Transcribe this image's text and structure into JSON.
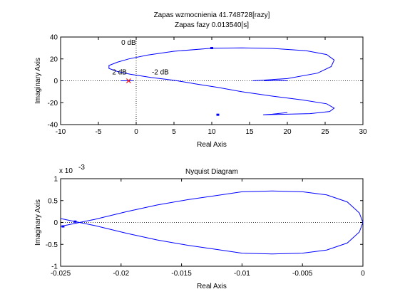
{
  "chart_data": [
    {
      "type": "line",
      "title": [
        "Zapas wzmocnienia 41.748728[razy]",
        "Zapas fazy 0.013540[s]"
      ],
      "xlabel": "Real Axis",
      "ylabel": "Imaginary Axis",
      "xlim": [
        -10,
        30
      ],
      "ylim": [
        -40,
        40
      ],
      "xticks": [
        -10,
        -5,
        0,
        5,
        10,
        15,
        20,
        25,
        30
      ],
      "yticks": [
        -40,
        -20,
        0,
        20,
        40
      ],
      "xtick_labels": [
        "-10",
        "-5",
        "0",
        "5",
        "10",
        "15",
        "20",
        "25",
        "30"
      ],
      "ytick_labels": [
        "-40",
        "-20",
        "0",
        "20",
        "40"
      ],
      "grid": false,
      "critical_point": [
        -1,
        0
      ],
      "annotations": [
        {
          "text": "0 dB",
          "x": -1,
          "y": 33
        },
        {
          "text": "2 dB",
          "x": -2.2,
          "y": 6
        },
        {
          "text": "-2 dB",
          "x": 3.2,
          "y": 6
        }
      ],
      "series": [
        {
          "color": "#0000ff",
          "x": [
            15.4,
            20,
            24,
            25.8,
            26.2,
            25.2,
            22.5,
            18,
            14,
            10,
            5,
            1.5,
            -1,
            -2.5,
            -3.6,
            -3.6,
            -2.5,
            -0.8,
            2,
            5,
            8,
            10.8,
            14,
            18,
            22,
            25.2,
            26.2,
            25.6,
            23,
            18,
            16.8,
            18,
            20
          ],
          "y": [
            0,
            2,
            7,
            13,
            19,
            24,
            27.5,
            29.6,
            30.1,
            29.8,
            27,
            23.5,
            20,
            17,
            14,
            11.3,
            8.5,
            6,
            3,
            0.5,
            -3,
            -6,
            -10,
            -14,
            -17.5,
            -21,
            -25,
            -28,
            -30,
            -30.8,
            -31,
            -30.5,
            -29
          ],
          "arrow_points": [
            [
              10,
              29.9
            ],
            [
              10.8,
              -31
            ]
          ]
        },
        {
          "color": "#0000ff",
          "x": [
            17,
            19,
            20
          ],
          "y": [
            0,
            0.4,
            0
          ]
        },
        {
          "color": "#0000ff",
          "x": [
            -0.4,
            -1.2,
            -2
          ],
          "y": [
            0,
            0,
            0
          ]
        }
      ]
    },
    {
      "type": "line",
      "title": "Nyquist Diagram",
      "xlabel": "Real Axis",
      "ylabel": "Imaginary Axis",
      "xlim": [
        -0.025,
        0
      ],
      "ylim": [
        -1,
        1
      ],
      "y_exponent_label": "x 10",
      "y_exponent_power": "-3",
      "xticks": [
        -0.025,
        -0.02,
        -0.015,
        -0.01,
        -0.005,
        0
      ],
      "yticks": [
        -1,
        -0.5,
        0,
        0.5,
        1
      ],
      "xtick_labels": [
        "-0.025",
        "-0.02",
        "-0.015",
        "-0.01",
        "-0.005",
        "0"
      ],
      "ytick_labels": [
        "-1",
        "-0.5",
        "0",
        "0.5",
        "1"
      ],
      "grid": false,
      "series": [
        {
          "color": "#0000ff",
          "x": [
            0,
            -0.0003,
            -0.0013,
            -0.003,
            -0.005,
            -0.0075,
            -0.01,
            -0.012,
            -0.0145,
            -0.017,
            -0.0195,
            -0.0222,
            -0.0238,
            -0.025
          ],
          "y": [
            0,
            0.22,
            0.47,
            0.63,
            0.7,
            0.72,
            0.7,
            0.62,
            0.52,
            0.4,
            0.25,
            0.07,
            -0.02,
            -0.09
          ],
          "arrow_points": [
            [
              -0.0248,
              -0.09
            ]
          ]
        },
        {
          "color": "#0000ff",
          "x": [
            0,
            -0.0003,
            -0.0013,
            -0.003,
            -0.005,
            -0.0075,
            -0.01,
            -0.012,
            -0.0145,
            -0.017,
            -0.0195,
            -0.0222,
            -0.0238,
            -0.025
          ],
          "y": [
            0,
            -0.22,
            -0.47,
            -0.63,
            -0.7,
            -0.72,
            -0.7,
            -0.62,
            -0.52,
            -0.4,
            -0.25,
            -0.07,
            0.02,
            0.09
          ],
          "arrow_points": [
            [
              -0.0238,
              0.02
            ]
          ]
        }
      ]
    }
  ]
}
